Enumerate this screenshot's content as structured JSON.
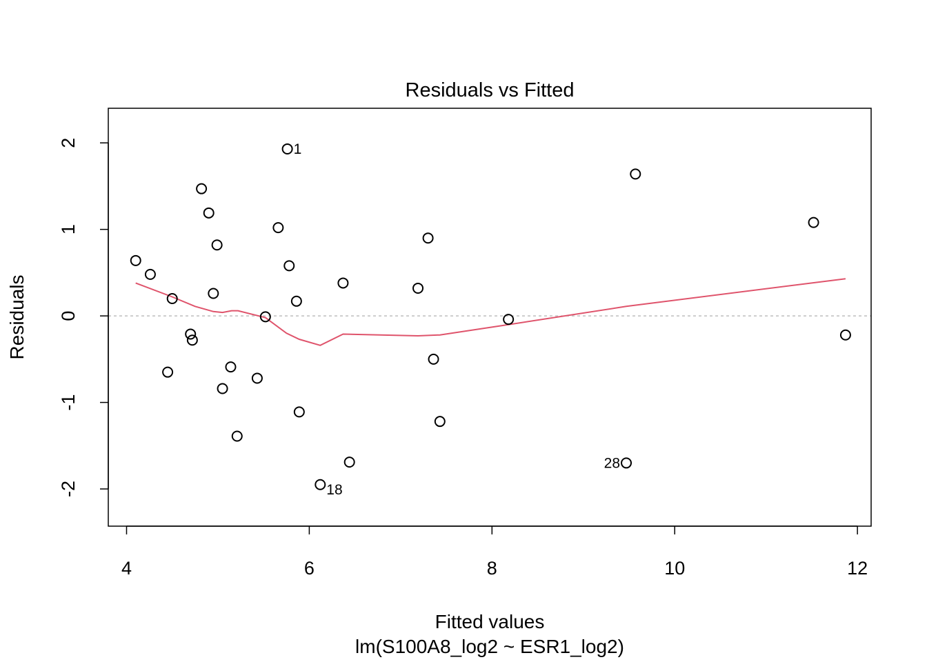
{
  "chart_data": {
    "type": "scatter",
    "title": "Residuals vs Fitted",
    "xlabel": "Fitted values",
    "subtitle": "lm(S100A8_log2 ~ ESR1_log2)",
    "ylabel": "Residuals",
    "xlim": [
      3.8,
      12.15
    ],
    "ylim": [
      -2.43,
      2.4
    ],
    "xticks": [
      "4",
      "6",
      "8",
      "10",
      "12"
    ],
    "yticks": [
      "-2",
      "-1",
      "0",
      "1",
      "2"
    ],
    "reference_line": 0,
    "colors": {
      "points": "#000000",
      "smooth": "#DF536B",
      "reference": "#BEBEBE"
    },
    "points": [
      {
        "x": 4.1,
        "y": 0.64
      },
      {
        "x": 4.26,
        "y": 0.48
      },
      {
        "x": 4.45,
        "y": -0.65
      },
      {
        "x": 4.5,
        "y": 0.2
      },
      {
        "x": 4.7,
        "y": -0.21
      },
      {
        "x": 4.72,
        "y": -0.28
      },
      {
        "x": 4.82,
        "y": 1.47
      },
      {
        "x": 4.9,
        "y": 1.19
      },
      {
        "x": 4.95,
        "y": 0.26
      },
      {
        "x": 4.99,
        "y": 0.82
      },
      {
        "x": 5.05,
        "y": -0.84
      },
      {
        "x": 5.14,
        "y": -0.59
      },
      {
        "x": 5.21,
        "y": -1.39
      },
      {
        "x": 5.43,
        "y": -0.72
      },
      {
        "x": 5.52,
        "y": -0.01
      },
      {
        "x": 5.66,
        "y": 1.02
      },
      {
        "x": 5.76,
        "y": 1.93,
        "label": "1"
      },
      {
        "x": 5.78,
        "y": 0.58
      },
      {
        "x": 5.86,
        "y": 0.17
      },
      {
        "x": 5.89,
        "y": -1.11
      },
      {
        "x": 6.12,
        "y": -1.95,
        "label": "18"
      },
      {
        "x": 6.37,
        "y": 0.38
      },
      {
        "x": 6.44,
        "y": -1.69
      },
      {
        "x": 7.19,
        "y": 0.32
      },
      {
        "x": 7.3,
        "y": 0.9
      },
      {
        "x": 7.36,
        "y": -0.5
      },
      {
        "x": 7.43,
        "y": -1.22
      },
      {
        "x": 8.18,
        "y": -0.04
      },
      {
        "x": 9.47,
        "y": -1.7,
        "label": "28"
      },
      {
        "x": 9.57,
        "y": 1.64
      },
      {
        "x": 11.52,
        "y": 1.08
      },
      {
        "x": 11.87,
        "y": -0.22
      }
    ],
    "smooth": [
      {
        "x": 4.1,
        "y": 0.38
      },
      {
        "x": 4.5,
        "y": 0.22
      },
      {
        "x": 4.75,
        "y": 0.11
      },
      {
        "x": 4.95,
        "y": 0.05
      },
      {
        "x": 5.05,
        "y": 0.04
      },
      {
        "x": 5.15,
        "y": 0.06
      },
      {
        "x": 5.22,
        "y": 0.06
      },
      {
        "x": 5.52,
        "y": -0.02
      },
      {
        "x": 5.75,
        "y": -0.2
      },
      {
        "x": 5.89,
        "y": -0.27
      },
      {
        "x": 6.12,
        "y": -0.34
      },
      {
        "x": 6.37,
        "y": -0.21
      },
      {
        "x": 7.19,
        "y": -0.23
      },
      {
        "x": 7.43,
        "y": -0.22
      },
      {
        "x": 8.18,
        "y": -0.1
      },
      {
        "x": 9.47,
        "y": 0.11
      },
      {
        "x": 11.87,
        "y": 0.43
      }
    ]
  }
}
